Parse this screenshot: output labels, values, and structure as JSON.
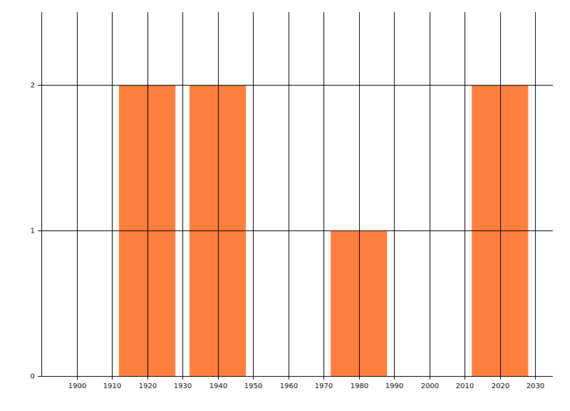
{
  "chart_data": {
    "type": "bar",
    "x": [
      1920,
      1940,
      1980,
      2020
    ],
    "values": [
      2,
      2,
      1,
      2
    ],
    "color": "#ff7f3f",
    "xlim": [
      1890,
      2035
    ],
    "xticks": [
      1900,
      1910,
      1920,
      1930,
      1940,
      1950,
      1960,
      1970,
      1980,
      1990,
      2000,
      2010,
      2020,
      2030
    ],
    "ylim": [
      0,
      2.5
    ],
    "yticks": [
      0,
      1,
      2
    ],
    "grid": true
  }
}
